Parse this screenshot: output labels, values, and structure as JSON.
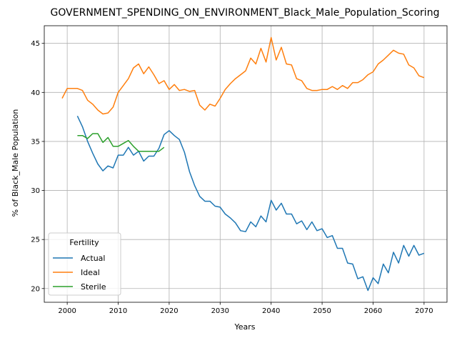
{
  "chart_data": {
    "type": "line",
    "title": "GOVERNMENT_SPENDING_ON_ENVIRONMENT_Black_Male_Population_Scoring",
    "xlabel": "Years",
    "ylabel": "% of Black_Male Population",
    "xlim": [
      1995.5,
      2074.5
    ],
    "ylim": [
      18.6,
      46.8
    ],
    "xticks": [
      2000,
      2010,
      2020,
      2030,
      2040,
      2050,
      2060,
      2070
    ],
    "yticks": [
      20,
      25,
      30,
      35,
      40,
      45
    ],
    "grid": true,
    "legend": {
      "title": "Fertility",
      "placement": "lower-left"
    },
    "series": [
      {
        "name": "Actual",
        "color": "#1f77b4",
        "x": [
          2002,
          2003,
          2004,
          2005,
          2006,
          2007,
          2008,
          2009,
          2010,
          2011,
          2012,
          2013,
          2014,
          2015,
          2016,
          2017,
          2018,
          2019,
          2020,
          2021,
          2022,
          2023,
          2024,
          2025,
          2026,
          2027,
          2028,
          2029,
          2030,
          2031,
          2032,
          2033,
          2034,
          2035,
          2036,
          2037,
          2038,
          2039,
          2040,
          2041,
          2042,
          2043,
          2044,
          2045,
          2046,
          2047,
          2048,
          2049,
          2050,
          2051,
          2052,
          2053,
          2054,
          2055,
          2056,
          2057,
          2058,
          2059,
          2060,
          2061,
          2062,
          2063,
          2064,
          2065,
          2066,
          2067,
          2068,
          2069,
          2070
        ],
        "values": [
          37.6,
          36.5,
          35.0,
          33.8,
          32.7,
          32.0,
          32.5,
          32.3,
          33.6,
          33.6,
          34.4,
          33.6,
          34.0,
          33.0,
          33.5,
          33.5,
          34.3,
          35.7,
          36.1,
          35.6,
          35.2,
          33.9,
          31.9,
          30.5,
          29.4,
          28.9,
          28.9,
          28.4,
          28.3,
          27.6,
          27.2,
          26.7,
          25.9,
          25.8,
          26.8,
          26.3,
          27.4,
          26.8,
          29.0,
          28.0,
          28.7,
          27.6,
          27.6,
          26.6,
          26.9,
          26.0,
          26.8,
          25.9,
          26.1,
          25.2,
          25.4,
          24.1,
          24.1,
          22.6,
          22.5,
          21.0,
          21.2,
          19.8,
          21.1,
          20.5,
          22.5,
          21.6,
          23.7,
          22.6,
          24.4,
          23.3,
          24.4,
          23.4,
          23.6
        ]
      },
      {
        "name": "Ideal",
        "color": "#ff7f0e",
        "x": [
          1999,
          2000,
          2001,
          2002,
          2003,
          2004,
          2005,
          2006,
          2007,
          2008,
          2009,
          2010,
          2011,
          2012,
          2013,
          2014,
          2015,
          2016,
          2017,
          2018,
          2019,
          2020,
          2021,
          2022,
          2023,
          2024,
          2025,
          2026,
          2027,
          2028,
          2029,
          2030,
          2031,
          2032,
          2033,
          2034,
          2035,
          2036,
          2037,
          2038,
          2039,
          2040,
          2041,
          2042,
          2043,
          2044,
          2045,
          2046,
          2047,
          2048,
          2049,
          2050,
          2051,
          2052,
          2053,
          2054,
          2055,
          2056,
          2057,
          2058,
          2059,
          2060,
          2061,
          2062,
          2063,
          2064,
          2065,
          2066,
          2067,
          2068,
          2069,
          2070
        ],
        "values": [
          39.4,
          40.4,
          40.4,
          40.4,
          40.2,
          39.2,
          38.8,
          38.2,
          37.8,
          37.9,
          38.5,
          40.0,
          40.7,
          41.4,
          42.5,
          42.9,
          41.9,
          42.6,
          41.8,
          40.9,
          41.2,
          40.3,
          40.8,
          40.2,
          40.3,
          40.1,
          40.2,
          38.7,
          38.2,
          38.8,
          38.6,
          39.4,
          40.3,
          40.9,
          41.4,
          41.8,
          42.2,
          43.5,
          42.9,
          44.5,
          43.1,
          45.6,
          43.3,
          44.6,
          42.9,
          42.8,
          41.4,
          41.2,
          40.4,
          40.2,
          40.2,
          40.3,
          40.3,
          40.6,
          40.3,
          40.7,
          40.4,
          41.0,
          41.0,
          41.3,
          41.8,
          42.1,
          42.9,
          43.3,
          43.8,
          44.3,
          44.0,
          43.9,
          42.8,
          42.5,
          41.7,
          41.5
        ]
      },
      {
        "name": "Sterile",
        "color": "#2ca02c",
        "x": [
          2002,
          2003,
          2004,
          2005,
          2006,
          2007,
          2008,
          2009,
          2010,
          2011,
          2012,
          2013,
          2014,
          2015,
          2016,
          2017,
          2018,
          2019
        ],
        "values": [
          35.6,
          35.6,
          35.3,
          35.8,
          35.8,
          34.9,
          35.4,
          34.5,
          34.5,
          34.8,
          35.1,
          34.5,
          34.0,
          34.0,
          34.0,
          34.0,
          34.0,
          34.4
        ]
      }
    ]
  }
}
